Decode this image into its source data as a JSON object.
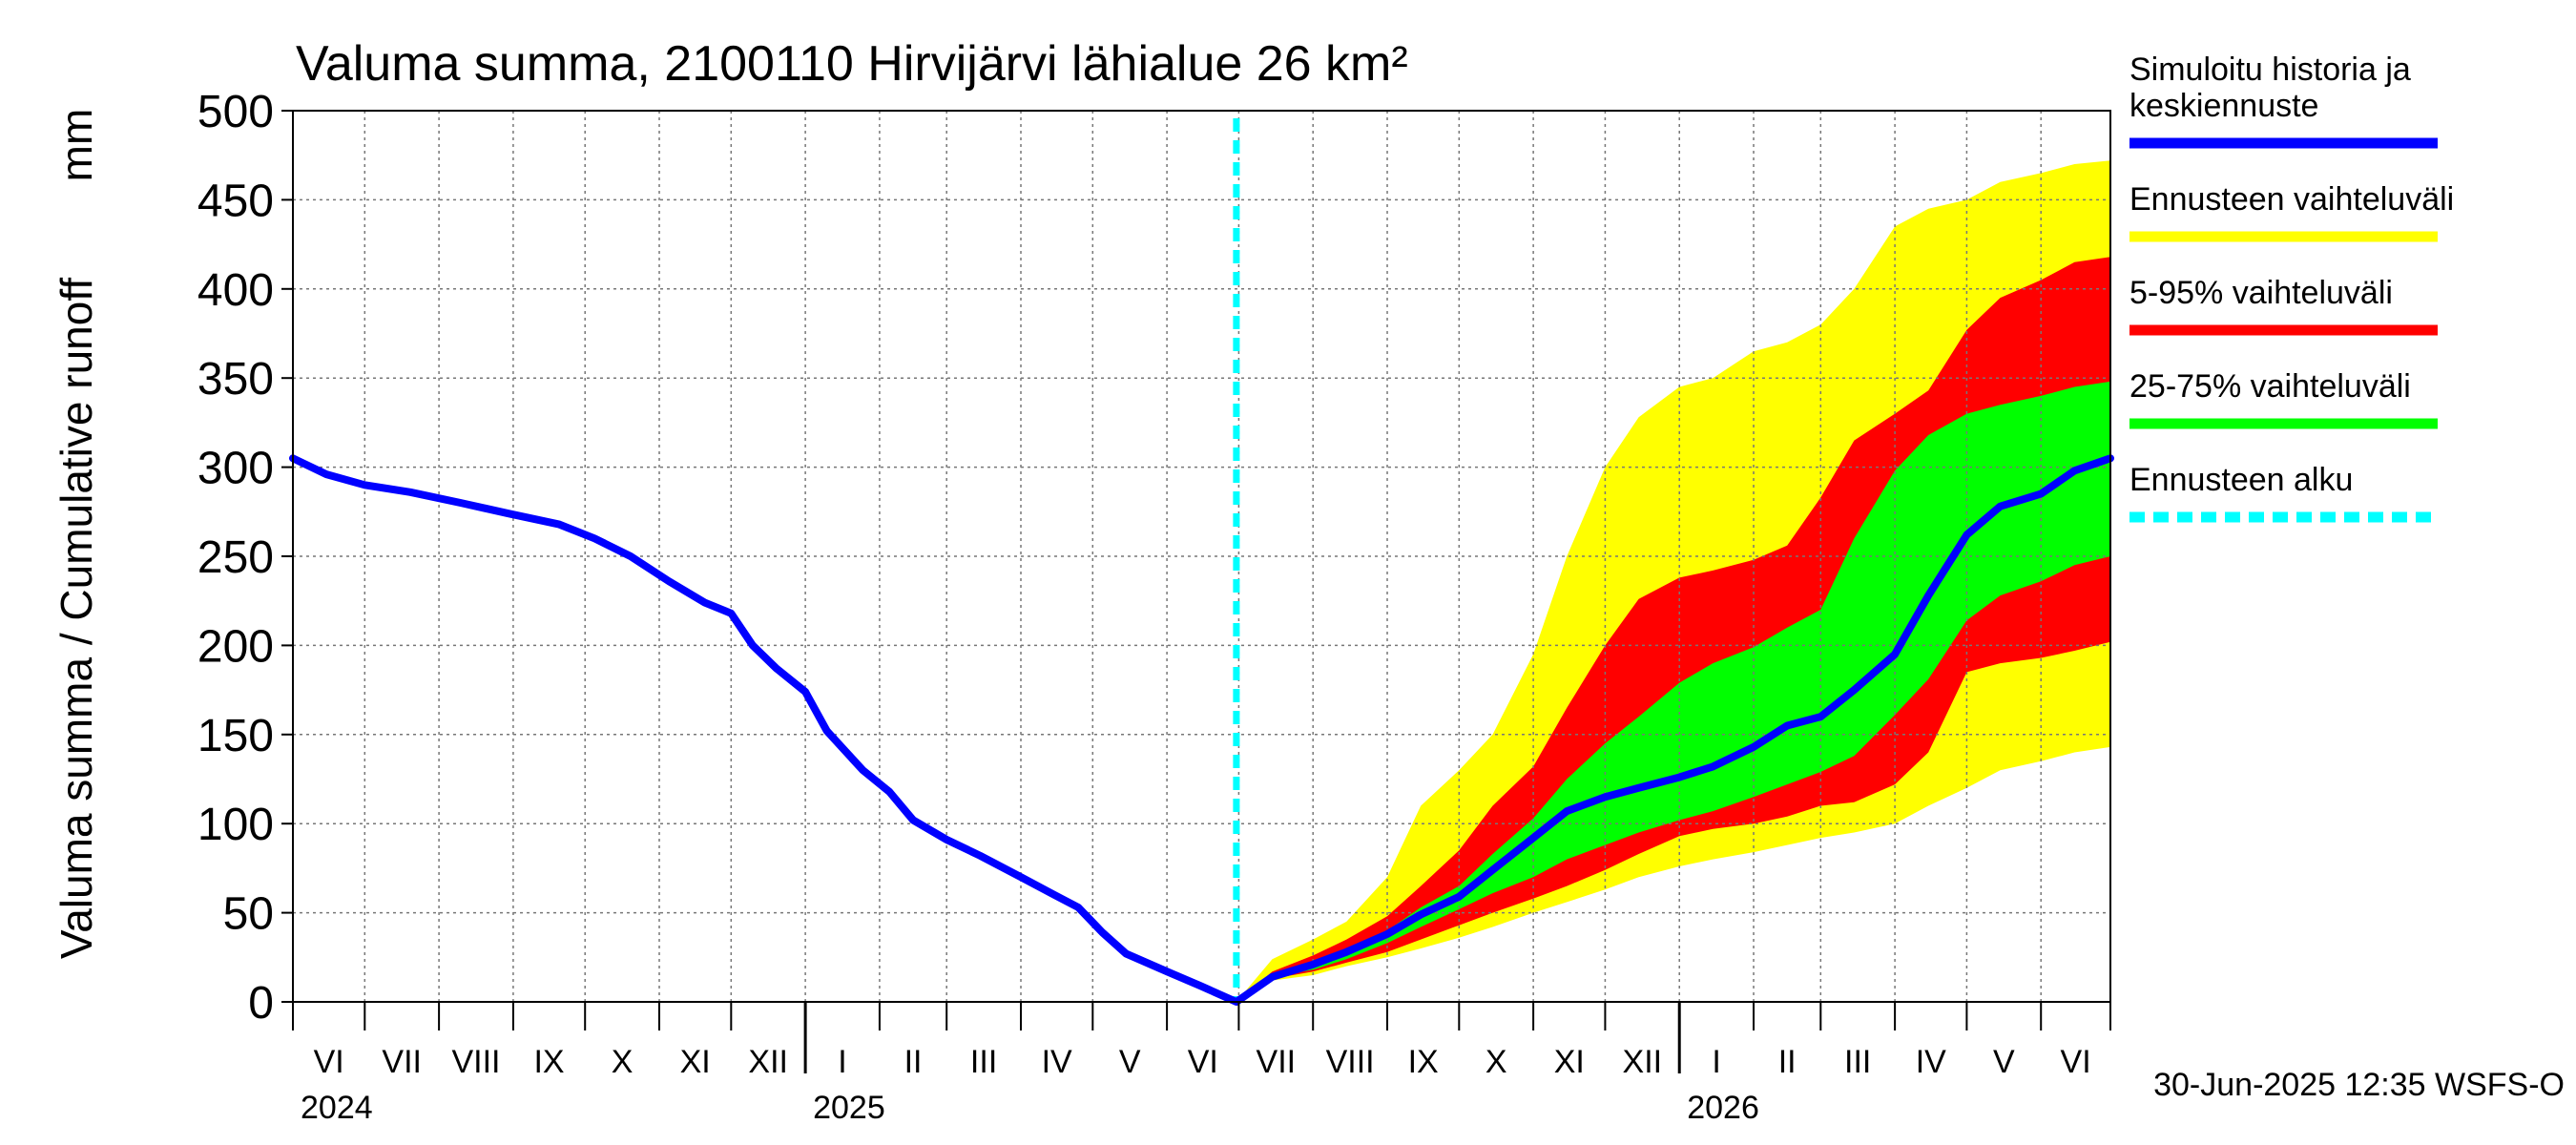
{
  "chart_data": {
    "type": "area",
    "title": "Valuma summa, 2100110 Hirvijärvi lähialue 26 km²",
    "ylabel": "Valuma summa / Cumulative runoff",
    "yunit": "mm",
    "ylim": [
      0,
      500
    ],
    "yticks": [
      0,
      50,
      100,
      150,
      200,
      250,
      300,
      350,
      400,
      450,
      500
    ],
    "xlim": [
      "2024-06-01",
      "2026-06-30"
    ],
    "grid": true,
    "month_labels": [
      {
        "date": "2024-06-01",
        "label": "VI"
      },
      {
        "date": "2024-07-01",
        "label": "VII"
      },
      {
        "date": "2024-08-01",
        "label": "VIII"
      },
      {
        "date": "2024-09-01",
        "label": "IX"
      },
      {
        "date": "2024-10-01",
        "label": "X"
      },
      {
        "date": "2024-11-01",
        "label": "XI"
      },
      {
        "date": "2024-12-01",
        "label": "XII"
      },
      {
        "date": "2025-01-01",
        "label": "I"
      },
      {
        "date": "2025-02-01",
        "label": "II"
      },
      {
        "date": "2025-03-01",
        "label": "III"
      },
      {
        "date": "2025-04-01",
        "label": "IV"
      },
      {
        "date": "2025-05-01",
        "label": "V"
      },
      {
        "date": "2025-06-01",
        "label": "VI"
      },
      {
        "date": "2025-07-01",
        "label": "VII"
      },
      {
        "date": "2025-08-01",
        "label": "VIII"
      },
      {
        "date": "2025-09-01",
        "label": "IX"
      },
      {
        "date": "2025-10-01",
        "label": "X"
      },
      {
        "date": "2025-11-01",
        "label": "XI"
      },
      {
        "date": "2025-12-01",
        "label": "XII"
      },
      {
        "date": "2026-01-01",
        "label": "I"
      },
      {
        "date": "2026-02-01",
        "label": "II"
      },
      {
        "date": "2026-03-01",
        "label": "III"
      },
      {
        "date": "2026-04-01",
        "label": "IV"
      },
      {
        "date": "2026-05-01",
        "label": "V"
      },
      {
        "date": "2026-06-01",
        "label": "VI"
      }
    ],
    "year_labels": [
      {
        "date": "2024-06-01",
        "label": "2024"
      },
      {
        "date": "2025-01-01",
        "label": "2025"
      },
      {
        "date": "2026-01-01",
        "label": "2026"
      }
    ],
    "forecast_start": "2025-06-30",
    "legend_position": "right",
    "legend": [
      {
        "label": "Simuloitu historia ja keskiennuste",
        "lines": [
          "Simuloitu historia ja",
          "keskiennuste"
        ],
        "color": "#0000ff",
        "style": "solid"
      },
      {
        "label": "Ennusteen vaihteluväli",
        "lines": [
          "Ennusteen vaihteluväli"
        ],
        "color": "#ffff00",
        "style": "solid"
      },
      {
        "label": "5-95% vaihteluväli",
        "lines": [
          "5-95% vaihteluväli"
        ],
        "color": "#ff0000",
        "style": "solid"
      },
      {
        "label": "25-75% vaihteluväli",
        "lines": [
          "25-75% vaihteluväli"
        ],
        "color": "#00ff00",
        "style": "solid"
      },
      {
        "label": "Ennusteen alku",
        "lines": [
          "Ennusteen alku"
        ],
        "color": "#00ffff",
        "style": "dashed"
      }
    ],
    "history": {
      "x": [
        "2024-06-01",
        "2024-06-15",
        "2024-07-01",
        "2024-07-20",
        "2024-08-10",
        "2024-08-30",
        "2024-09-20",
        "2024-10-05",
        "2024-10-20",
        "2024-11-05",
        "2024-11-20",
        "2024-12-01",
        "2024-12-10",
        "2024-12-20",
        "2025-01-01",
        "2025-01-10",
        "2025-01-25",
        "2025-02-05",
        "2025-02-15",
        "2025-03-01",
        "2025-03-15",
        "2025-04-01",
        "2025-04-15",
        "2025-04-25",
        "2025-05-05",
        "2025-05-15",
        "2025-06-01",
        "2025-06-15",
        "2025-06-30"
      ],
      "values": [
        305,
        296,
        290,
        286,
        280,
        274,
        268,
        260,
        250,
        236,
        224,
        218,
        200,
        187,
        174,
        152,
        130,
        118,
        102,
        91,
        82,
        70,
        60,
        53,
        39,
        27,
        17,
        9,
        0
      ]
    },
    "bands": {
      "x": [
        "2025-06-30",
        "2025-07-15",
        "2025-08-01",
        "2025-08-15",
        "2025-09-01",
        "2025-09-15",
        "2025-10-01",
        "2025-10-15",
        "2025-11-01",
        "2025-11-15",
        "2025-12-01",
        "2025-12-15",
        "2026-01-01",
        "2026-01-15",
        "2026-02-01",
        "2026-02-15",
        "2026-03-01",
        "2026-03-15",
        "2026-04-01",
        "2026-04-15",
        "2026-05-01",
        "2026-05-15",
        "2026-06-01",
        "2026-06-15",
        "2026-06-30"
      ],
      "max": [
        0,
        24,
        35,
        45,
        70,
        110,
        130,
        150,
        195,
        250,
        300,
        328,
        345,
        350,
        365,
        370,
        380,
        400,
        435,
        445,
        450,
        460,
        465,
        470,
        472
      ],
      "p95": [
        0,
        17,
        26,
        35,
        48,
        65,
        85,
        110,
        132,
        165,
        200,
        226,
        238,
        242,
        248,
        256,
        283,
        315,
        330,
        343,
        377,
        395,
        405,
        415,
        418
      ],
      "p75": [
        0,
        15,
        22,
        30,
        40,
        53,
        65,
        83,
        103,
        125,
        145,
        160,
        179,
        190,
        199,
        210,
        220,
        260,
        298,
        318,
        330,
        335,
        340,
        345,
        348
      ],
      "p25": [
        0,
        14,
        18,
        24,
        33,
        42,
        52,
        61,
        70,
        80,
        88,
        95,
        102,
        107,
        115,
        122,
        129,
        138,
        161,
        181,
        214,
        228,
        236,
        245,
        250
      ],
      "p05": [
        0,
        13,
        17,
        22,
        28,
        35,
        43,
        50,
        58,
        65,
        74,
        83,
        93,
        97,
        100,
        104,
        110,
        112,
        122,
        140,
        185,
        190,
        193,
        197,
        202
      ],
      "min": [
        0,
        12,
        15,
        20,
        25,
        30,
        36,
        42,
        50,
        56,
        63,
        70,
        76,
        80,
        84,
        88,
        92,
        95,
        100,
        110,
        120,
        130,
        135,
        140,
        143
      ],
      "median": [
        0,
        14,
        21,
        28,
        38,
        49,
        59,
        74,
        92,
        107,
        115,
        120,
        126,
        132,
        143,
        155,
        160,
        175,
        195,
        228,
        262,
        278,
        285,
        298,
        305
      ]
    },
    "timestamp": "30-Jun-2025 12:35 WSFS-O"
  }
}
